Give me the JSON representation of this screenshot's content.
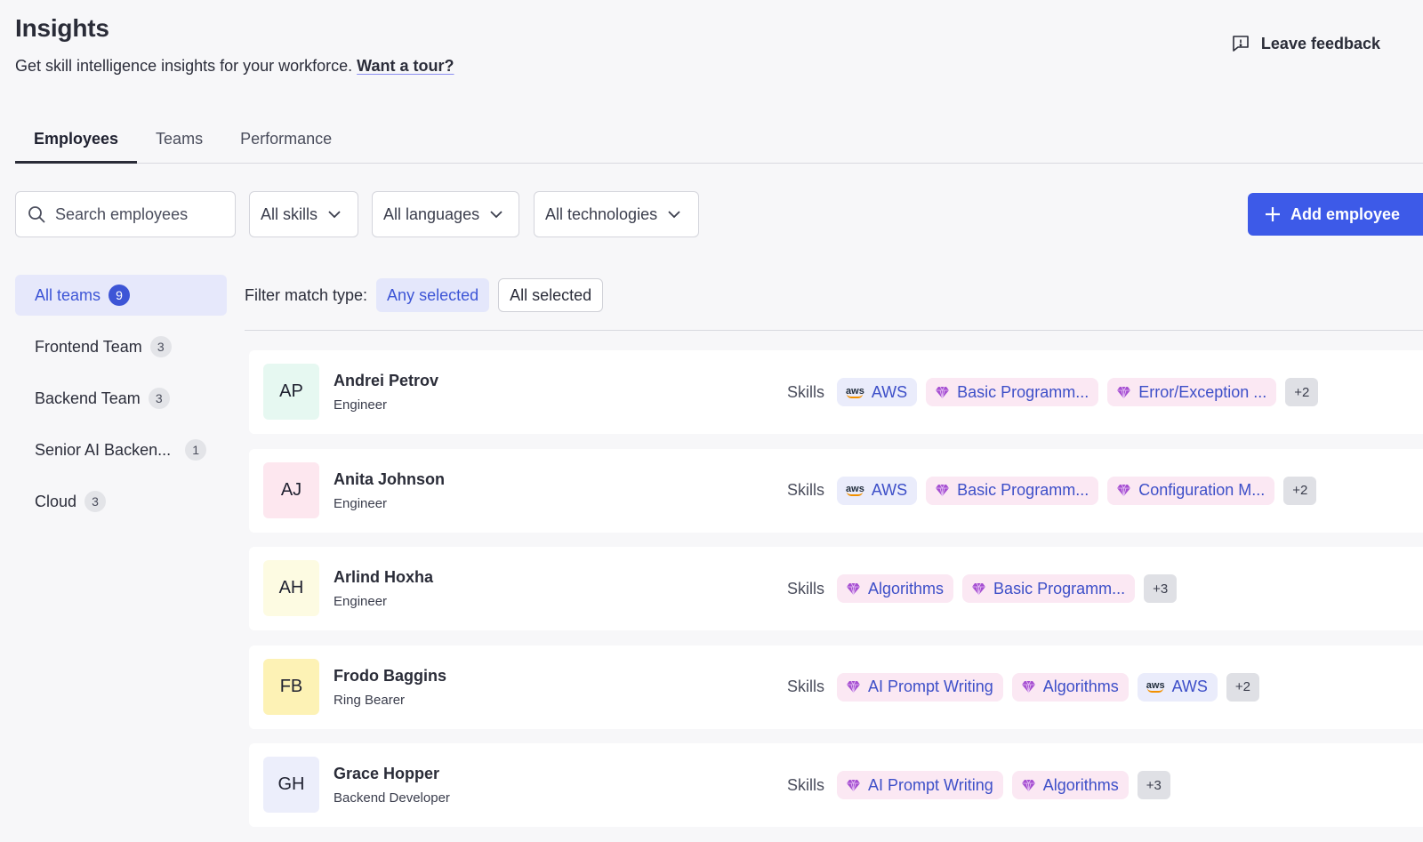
{
  "header": {
    "title": "Insights",
    "subtitle": "Get skill intelligence insights for your workforce.",
    "tour_link": "Want a tour?",
    "feedback_label": "Leave feedback"
  },
  "tabs": [
    {
      "label": "Employees",
      "active": true
    },
    {
      "label": "Teams",
      "active": false
    },
    {
      "label": "Performance",
      "active": false
    }
  ],
  "toolbar": {
    "search_placeholder": "Search employees",
    "skills_filter": "All skills",
    "languages_filter": "All languages",
    "technologies_filter": "All technologies",
    "add_label": "Add employee"
  },
  "sidebar": {
    "items": [
      {
        "label": "All teams",
        "count": "9",
        "active": true
      },
      {
        "label": "Frontend Team",
        "count": "3"
      },
      {
        "label": "Backend Team",
        "count": "3"
      },
      {
        "label": "Senior AI Backen...",
        "count": "1"
      },
      {
        "label": "Cloud",
        "count": "3"
      }
    ]
  },
  "match": {
    "label": "Filter match type:",
    "any": "Any selected",
    "all": "All selected"
  },
  "skills_label": "Skills",
  "employees": [
    {
      "initials": "AP",
      "avatar_color": "#e6f8f1",
      "name": "Andrei Petrov",
      "role": "Engineer",
      "skills": [
        {
          "label": "AWS",
          "icon": "aws-icon"
        },
        {
          "label": "Basic Programm...",
          "icon": "gem-icon"
        },
        {
          "label": "Error/Exception ...",
          "icon": "gem-icon"
        }
      ],
      "more": "+2"
    },
    {
      "initials": "AJ",
      "avatar_color": "#fde7ef",
      "name": "Anita Johnson",
      "role": "Engineer",
      "skills": [
        {
          "label": "AWS",
          "icon": "aws-icon"
        },
        {
          "label": "Basic Programm...",
          "icon": "gem-icon"
        },
        {
          "label": "Configuration M...",
          "icon": "gem-icon"
        }
      ],
      "more": "+2"
    },
    {
      "initials": "AH",
      "avatar_color": "#fdfbe2",
      "name": "Arlind Hoxha",
      "role": "Engineer",
      "skills": [
        {
          "label": "Algorithms",
          "icon": "gem-icon"
        },
        {
          "label": "Basic Programm...",
          "icon": "gem-icon"
        }
      ],
      "more": "+3"
    },
    {
      "initials": "FB",
      "avatar_color": "#fdf2b5",
      "name": "Frodo Baggins",
      "role": "Ring Bearer",
      "skills": [
        {
          "label": "AI Prompt Writing",
          "icon": "gem-icon"
        },
        {
          "label": "Algorithms",
          "icon": "gem-icon"
        },
        {
          "label": "AWS",
          "icon": "aws-icon"
        }
      ],
      "more": "+2"
    },
    {
      "initials": "GH",
      "avatar_color": "#eceefb",
      "name": "Grace Hopper",
      "role": "Backend Developer",
      "skills": [
        {
          "label": "AI Prompt Writing",
          "icon": "gem-icon"
        },
        {
          "label": "Algorithms",
          "icon": "gem-icon"
        }
      ],
      "more": "+3"
    }
  ]
}
